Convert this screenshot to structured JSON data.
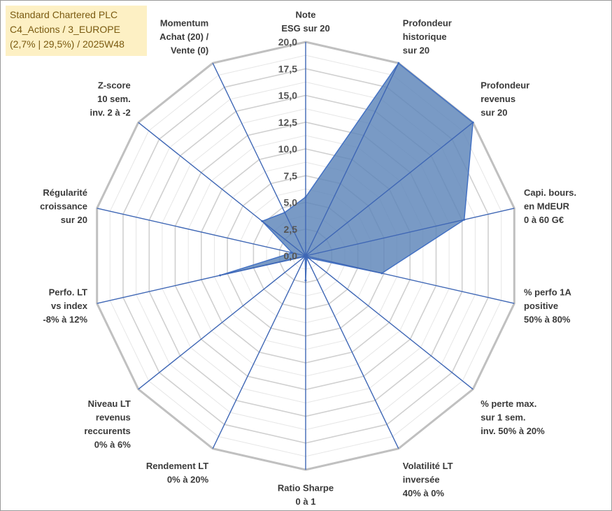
{
  "header": {
    "line1": "Standard Chartered PLC",
    "line2": "C4_Actions / 3_EUROPE",
    "line3": "(2,7% | 29,5%) / 2025W48"
  },
  "chart_data": {
    "type": "radar",
    "rmin": 0,
    "rmax": 20,
    "ticks": [
      "0,0",
      "2,5",
      "5,0",
      "7,5",
      "10,0",
      "12,5",
      "15,0",
      "17,5",
      "20,0"
    ],
    "grid": true,
    "series_color": "#5b84b8",
    "grid_color": "#c8c8c8",
    "axis_color": "#3f67b5",
    "categories": [
      [
        "Note",
        "ESG sur 20"
      ],
      [
        "Profondeur",
        "historique",
        "sur 20"
      ],
      [
        "Profondeur",
        "revenus",
        "sur 20"
      ],
      [
        "Capi. bours.",
        "en MdEUR",
        "0 à 60 G€"
      ],
      [
        "% perfo 1A",
        "positive",
        "50% à 80%"
      ],
      [
        "% perte max.",
        "sur 1 sem.",
        "inv. 50% à 20%"
      ],
      [
        "Volatilité LT",
        "inversée",
        "40% à 0%"
      ],
      [
        "Ratio Sharpe",
        "0 à 1"
      ],
      [
        "Rendement LT",
        "0% à 20%"
      ],
      [
        "Niveau LT",
        "revenus",
        "reccurents",
        "0% à 6%"
      ],
      [
        "Perfo. LT",
        "vs index",
        "-8% à 12%"
      ],
      [
        "Régularité",
        "croissance",
        "sur 20"
      ],
      [
        "Z-score",
        "10 sem.",
        "inv. 2 à -2"
      ],
      [
        "Momentum",
        "Achat (20) /",
        "Vente (0)"
      ]
    ],
    "series": [
      {
        "values": [
          5.5,
          20,
          20,
          15.2,
          7.3,
          0.3,
          0.2,
          2.3,
          0.1,
          0.1,
          8.2,
          1.3,
          5.2,
          4.5
        ]
      }
    ]
  }
}
